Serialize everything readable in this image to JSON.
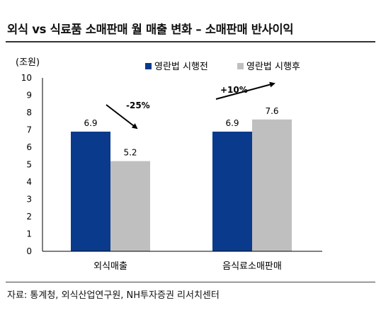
{
  "title": "외식 vs 식료품 소매판매 월 매출 변화 – 소매판매 반사이익",
  "source": "자료: 통계청, 외식산업연구원, NH투자증권 리서치센터",
  "chart_data": {
    "type": "bar",
    "unit_label": "(조원)",
    "categories": [
      "외식매출",
      "음식료소매판매"
    ],
    "series": [
      {
        "name": "영란법 시행전",
        "values": [
          6.9,
          6.9
        ],
        "color": "#0a3a8c"
      },
      {
        "name": "영란법 시행후",
        "values": [
          5.2,
          7.6
        ],
        "color": "#bfbfbf"
      }
    ],
    "ylim": [
      0,
      10
    ],
    "yticks": [
      0,
      1,
      2,
      3,
      4,
      5,
      6,
      7,
      8,
      9,
      10
    ],
    "legend_position": "top-right",
    "annotations": [
      "-25%",
      "+10%"
    ]
  }
}
